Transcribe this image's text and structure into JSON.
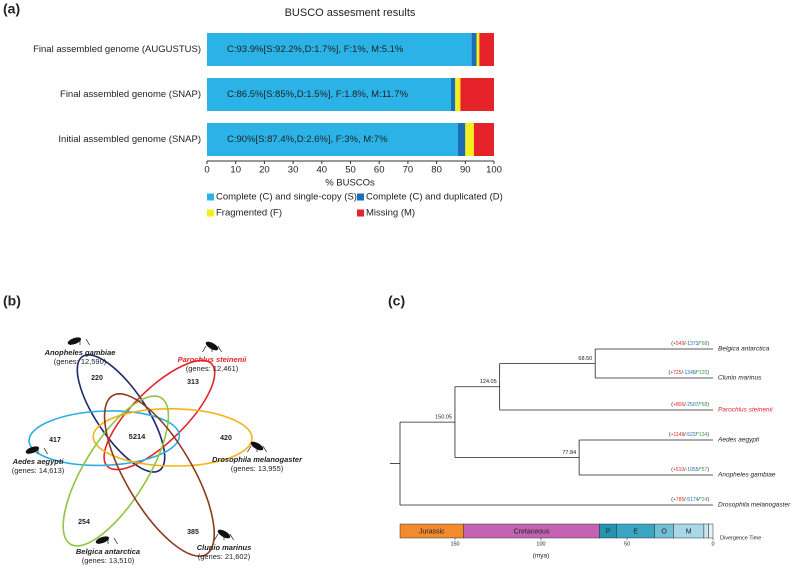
{
  "chart_data": [
    {
      "type": "bar",
      "panel_label": "(a)",
      "title": "BUSCO assesment results",
      "orientation": "horizontal",
      "stacked": true,
      "categories": [
        "Final assembled genome (AUGUSTUS)",
        "Final assembled genome (SNAP)",
        "Initial assembled genome (SNAP)"
      ],
      "bar_labels": [
        "C:93.9%[S:92.2%,D:1.7%], F:1%, M:5.1%",
        "C:86.5%[S:85%,D:1.5%], F:1.8%, M:11.7%",
        "C:90%[S:87.4%,D:2.6%], F:3%, M:7%"
      ],
      "series": [
        {
          "name": "Complete (C) and single-copy (S)",
          "color": "#2bb3e8",
          "values": [
            92.2,
            85,
            87.4
          ]
        },
        {
          "name": "Complete (C) and duplicated (D)",
          "color": "#1c6db3",
          "values": [
            1.7,
            1.5,
            2.6
          ]
        },
        {
          "name": "Fragmented (F)",
          "color": "#f3ee1c",
          "values": [
            1,
            1.8,
            3
          ]
        },
        {
          "name": "Missing (M)",
          "color": "#e6232a",
          "values": [
            5.1,
            11.7,
            7
          ]
        }
      ],
      "xlabel": "% BUSCOs",
      "xlim": [
        0,
        100
      ],
      "xticks": [
        0,
        10,
        20,
        30,
        40,
        50,
        60,
        70,
        80,
        90,
        100
      ],
      "grid": false,
      "legend": "bottom"
    },
    {
      "type": "venn",
      "panel_label": "(b)",
      "core": "5214",
      "sets": [
        {
          "name": "Anopheles gambiae",
          "genes": "(genes: 12,590)",
          "unique": 220,
          "color": "#1f2a6e"
        },
        {
          "name": "Parochlus steinenii",
          "genes": "(genes: 12,461)",
          "unique": 313,
          "color": "#e0262b",
          "name_color": "#e0262b"
        },
        {
          "name": "Aedes aegypti",
          "genes": "(genes: 14,613)",
          "unique": 417,
          "color": "#2aaee3"
        },
        {
          "name": "Drosophila melanogaster",
          "genes": "(genes: 13,955)",
          "unique": 420,
          "color": "#f3b41b"
        },
        {
          "name": "Belgica antarctica",
          "genes": "(genes: 13,510)",
          "unique": 254,
          "color": "#8dc63f"
        },
        {
          "name": "Clunio marinus",
          "genes": "(genes: 21,602)",
          "unique": 385,
          "color": "#8b3b1c"
        }
      ]
    },
    {
      "type": "tree",
      "panel_label": "(c)",
      "punctuation": {
        "open": "(",
        "sep": "/",
        "close": ")"
      },
      "count_colors": {
        "gain": "#e0262b",
        "loss": "#1c6db3",
        "rapid": "#3a9a3a"
      },
      "tree": {
        "children": [
          {
            "age": 150.05,
            "label": "150.05",
            "children": [
              {
                "age": 124.05,
                "label": "124.05",
                "children": [
                  {
                    "age": 68.5,
                    "label": "68.50",
                    "children": [
                      {
                        "name": "Belgica antarctica",
                        "gain": "+549",
                        "loss": "-1373",
                        "rapid": "*68"
                      },
                      {
                        "name": "Clunio marinus",
                        "gain": "+725",
                        "loss": "-1348",
                        "rapid": "*120"
                      }
                    ]
                  },
                  {
                    "name": "Parochlus steinenii",
                    "gain": "+806",
                    "loss": "-2507",
                    "rapid": "*68",
                    "color": "#e0262b"
                  }
                ]
              },
              {
                "age": 77.84,
                "label": "77.84",
                "children": [
                  {
                    "name": "Aedes aegypti",
                    "gain": "+1148",
                    "loss": "-522",
                    "rapid": "*134"
                  },
                  {
                    "name": "Anopheles gambiae",
                    "gain": "+510",
                    "loss": "-1055",
                    "rapid": "*57"
                  }
                ]
              }
            ]
          },
          {
            "name": "Drosophila melanogaster",
            "gain": "+785",
            "loss": "-5174",
            "rapid": "*24"
          }
        ]
      },
      "eras": [
        {
          "name": "Jurassic",
          "start": 182,
          "end": 145,
          "color": "#f28a2e"
        },
        {
          "name": "Cretaceous",
          "start": 145,
          "end": 66,
          "color": "#c462b3"
        },
        {
          "name": "P",
          "start": 66,
          "end": 56,
          "color": "#2593b2"
        },
        {
          "name": "E",
          "start": 56,
          "end": 33.9,
          "color": "#3aa6c4"
        },
        {
          "name": "O",
          "start": 33.9,
          "end": 23,
          "color": "#72bfd6"
        },
        {
          "name": "M",
          "start": 23,
          "end": 5.3,
          "color": "#a9d8e8"
        },
        {
          "name": null,
          "start": 5.3,
          "end": 2.6,
          "color": "#c9e7f1"
        },
        {
          "name": null,
          "start": 2.6,
          "end": 0,
          "color": "#e2f2f7"
        }
      ],
      "xlabel": "(mya)",
      "scale_title": "Divergence Time",
      "xlim": [
        182,
        0
      ],
      "xticks": [
        150,
        100,
        50,
        0
      ]
    }
  ]
}
